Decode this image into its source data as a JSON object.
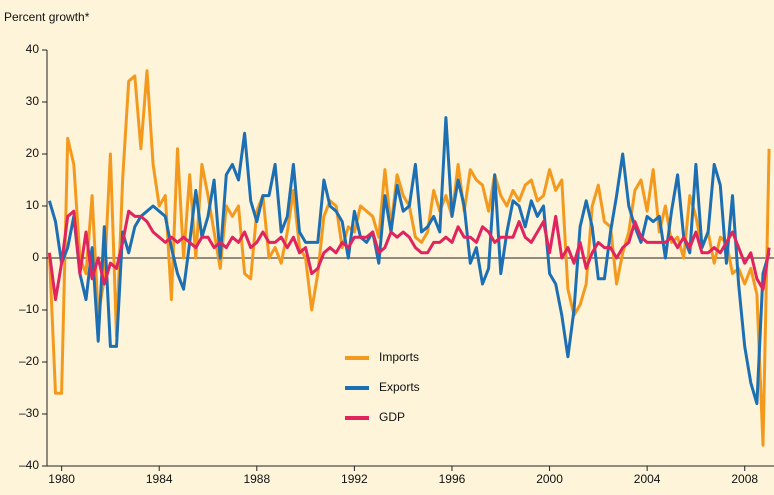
{
  "chart_data": {
    "type": "line",
    "y_label": "Percent growth*",
    "x": [
      1979.5,
      1979.75,
      1980,
      1980.25,
      1980.5,
      1980.75,
      1981,
      1981.25,
      1981.5,
      1981.75,
      1982,
      1982.25,
      1982.5,
      1982.75,
      1983,
      1983.25,
      1983.5,
      1983.75,
      1984,
      1984.25,
      1984.5,
      1984.75,
      1985,
      1985.25,
      1985.5,
      1985.75,
      1986,
      1986.25,
      1986.5,
      1986.75,
      1987,
      1987.25,
      1987.5,
      1987.75,
      1988,
      1988.25,
      1988.5,
      1988.75,
      1989,
      1989.25,
      1989.5,
      1989.75,
      1990,
      1990.25,
      1990.5,
      1990.75,
      1991,
      1991.25,
      1991.5,
      1991.75,
      1992,
      1992.25,
      1992.5,
      1992.75,
      1993,
      1993.25,
      1993.5,
      1993.75,
      1994,
      1994.25,
      1994.5,
      1994.75,
      1995,
      1995.25,
      1995.5,
      1995.75,
      1996,
      1996.25,
      1996.5,
      1996.75,
      1997,
      1997.25,
      1997.5,
      1997.75,
      1998,
      1998.25,
      1998.5,
      1998.75,
      1999,
      1999.25,
      1999.5,
      1999.75,
      2000,
      2000.25,
      2000.5,
      2000.75,
      2001,
      2001.25,
      2001.5,
      2001.75,
      2002,
      2002.25,
      2002.5,
      2002.75,
      2003,
      2003.25,
      2003.5,
      2003.75,
      2004,
      2004.25,
      2004.5,
      2004.75,
      2005,
      2005.25,
      2005.5,
      2005.75,
      2006,
      2006.25,
      2006.5,
      2006.75,
      2007,
      2007.25,
      2007.5,
      2007.75,
      2008,
      2008.25,
      2008.5,
      2008.75,
      2009
    ],
    "series": [
      {
        "name": "Imports",
        "color": "#f39a1e",
        "values": [
          1,
          -26,
          -26,
          23,
          18,
          0,
          -3,
          12,
          -11,
          -4,
          20,
          -15,
          15,
          34,
          35,
          21,
          36,
          18,
          10,
          12,
          -8,
          21,
          0,
          16,
          0,
          18,
          12,
          5,
          -2,
          10,
          8,
          10,
          -3,
          -4,
          9,
          12,
          0,
          2,
          -1,
          5,
          13,
          2,
          0,
          -10,
          -3,
          8,
          11,
          10,
          2,
          6,
          5,
          10,
          9,
          8,
          4,
          17,
          6,
          16,
          12,
          10,
          4,
          3,
          5,
          13,
          9,
          12,
          8,
          18,
          9,
          17,
          15,
          14,
          9,
          16,
          12,
          10,
          13,
          11,
          14,
          15,
          11,
          12,
          17,
          13,
          15,
          -6,
          -11,
          -9,
          -5,
          10,
          14,
          7,
          6,
          -5,
          1,
          5,
          13,
          15,
          9,
          17,
          5,
          10,
          3,
          4,
          0,
          12,
          8,
          2,
          5,
          -1,
          4,
          3,
          -3,
          -2,
          -5,
          -2,
          -7,
          -36,
          21
        ]
      },
      {
        "name": "Exports",
        "color": "#1d6fb4",
        "values": [
          11,
          7,
          -1,
          2,
          8,
          -3,
          -8,
          2,
          -16,
          6,
          -17,
          -17,
          5,
          1,
          6,
          8,
          9,
          10,
          9,
          8,
          2,
          -3,
          -6,
          3,
          13,
          4,
          8,
          15,
          0,
          16,
          18,
          15,
          24,
          11,
          7,
          12,
          12,
          18,
          5,
          8,
          18,
          5,
          3,
          3,
          3,
          15,
          10,
          9,
          7,
          0,
          9,
          4,
          3,
          5,
          -1,
          12,
          5,
          14,
          9,
          10,
          18,
          5,
          6,
          8,
          5,
          27,
          8,
          15,
          10,
          -1,
          2,
          -5,
          -2,
          16,
          -3,
          5,
          11,
          10,
          6,
          11,
          8,
          10,
          -3,
          -5,
          -11,
          -19,
          -10,
          6,
          11,
          6,
          -4,
          -4,
          5,
          12,
          20,
          10,
          6,
          3,
          8,
          7,
          8,
          0,
          9,
          16,
          4,
          1,
          18,
          2,
          5,
          18,
          14,
          -1,
          12,
          -5,
          -17,
          -24,
          -28,
          -3,
          1
        ]
      },
      {
        "name": "GDP",
        "color": "#e0245e",
        "values": [
          1,
          -8,
          -1,
          8,
          9,
          -3,
          5,
          -4,
          0,
          -5,
          -1,
          -2,
          3,
          9,
          8,
          8,
          7,
          5,
          4,
          3,
          4,
          3,
          4,
          3,
          2,
          4,
          4,
          2,
          3,
          2,
          4,
          3,
          5,
          2,
          3,
          5,
          3,
          3,
          4,
          2,
          4,
          1,
          2,
          -3,
          -2,
          1,
          2,
          1,
          3,
          2,
          4,
          4,
          4,
          5,
          1,
          2,
          5,
          4,
          5,
          4,
          2,
          1,
          1,
          3,
          3,
          4,
          3,
          6,
          4,
          4,
          3,
          6,
          5,
          3,
          4,
          4,
          4,
          7,
          4,
          3,
          5,
          7,
          1,
          8,
          0,
          2,
          -1,
          3,
          -2,
          1,
          3,
          2,
          2,
          0,
          2,
          3,
          7,
          4,
          3,
          3,
          3,
          3,
          4,
          2,
          4,
          2,
          5,
          1,
          1,
          2,
          1,
          3,
          5,
          2,
          -1,
          1,
          -4,
          -6,
          2
        ]
      }
    ],
    "xlim": [
      1979.4,
      2009.2
    ],
    "xticks": [
      1980,
      1984,
      1988,
      1992,
      1996,
      2000,
      2004,
      2008
    ],
    "ylim": [
      -40,
      40
    ],
    "yticks": [
      {
        "value": -40,
        "label": "–40"
      },
      {
        "value": -30,
        "label": "–30"
      },
      {
        "value": -20,
        "label": "–20"
      },
      {
        "value": -10,
        "label": "–10"
      },
      0,
      10,
      20,
      30,
      40
    ],
    "zero_line": true,
    "legend": "lower center",
    "background": "#fdf4da"
  }
}
